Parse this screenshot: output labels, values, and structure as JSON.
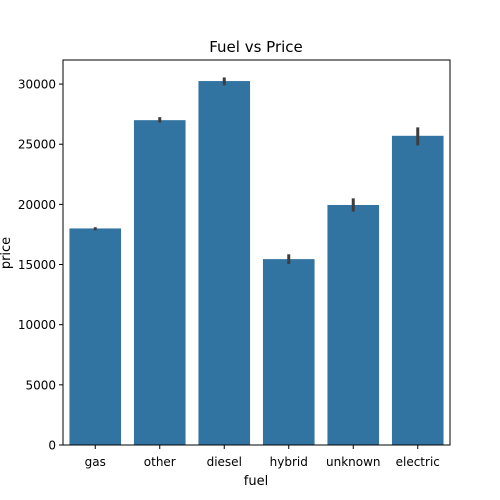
{
  "chart_data": {
    "type": "bar",
    "title": "Fuel vs Price",
    "xlabel": "fuel",
    "ylabel": "price",
    "categories": [
      "gas",
      "other",
      "diesel",
      "hybrid",
      "unknown",
      "electric"
    ],
    "values": [
      18000,
      27000,
      30250,
      15450,
      19950,
      25700
    ],
    "error_bars": [
      [
        17850,
        18100
      ],
      [
        26800,
        27250
      ],
      [
        29900,
        30550
      ],
      [
        15050,
        15850
      ],
      [
        19400,
        20500
      ],
      [
        24900,
        26400
      ]
    ],
    "ylim": [
      0,
      32000
    ],
    "yticks": [
      0,
      5000,
      10000,
      15000,
      20000,
      25000,
      30000
    ],
    "grid": false,
    "colors": {
      "bar": "#3274a1",
      "error": "#3d3d3d",
      "axis": "#000000"
    }
  }
}
